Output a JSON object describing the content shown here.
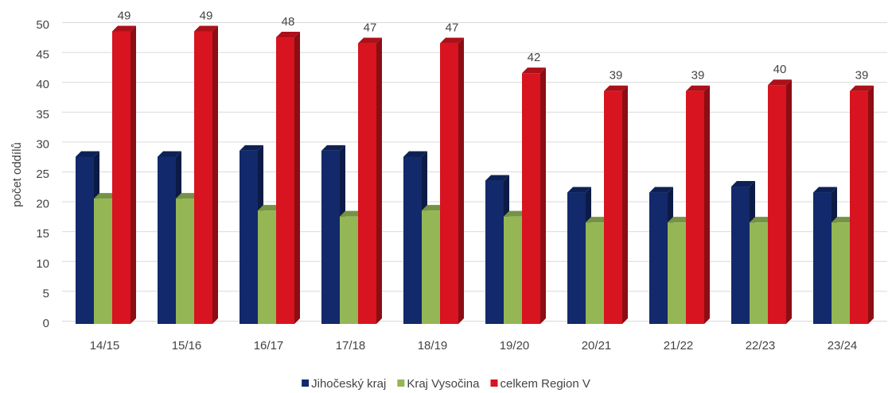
{
  "chart_data": {
    "type": "bar3d",
    "y_axis_label": "počet oddílů",
    "categories": [
      "14/15",
      "15/16",
      "16/17",
      "17/18",
      "18/19",
      "19/20",
      "20/21",
      "21/22",
      "22/23",
      "23/24"
    ],
    "series": [
      {
        "name": "Jihočeský kraj",
        "color": "#12296b",
        "values": [
          28,
          28,
          29,
          29,
          28,
          24,
          22,
          22,
          23,
          22
        ]
      },
      {
        "name": "Kraj Vysočina",
        "color": "#94b655",
        "values": [
          21,
          21,
          19,
          18,
          19,
          18,
          17,
          17,
          17,
          17
        ]
      },
      {
        "name": "celkem Region V",
        "color": "#d7141f",
        "values": [
          49,
          49,
          48,
          47,
          47,
          42,
          39,
          39,
          40,
          39
        ],
        "data_labels": true
      }
    ],
    "ylim": [
      0,
      50
    ],
    "yticks": [
      0,
      5,
      10,
      15,
      20,
      25,
      30,
      35,
      40,
      45,
      50
    ],
    "grid": true,
    "legend": "bottom"
  }
}
